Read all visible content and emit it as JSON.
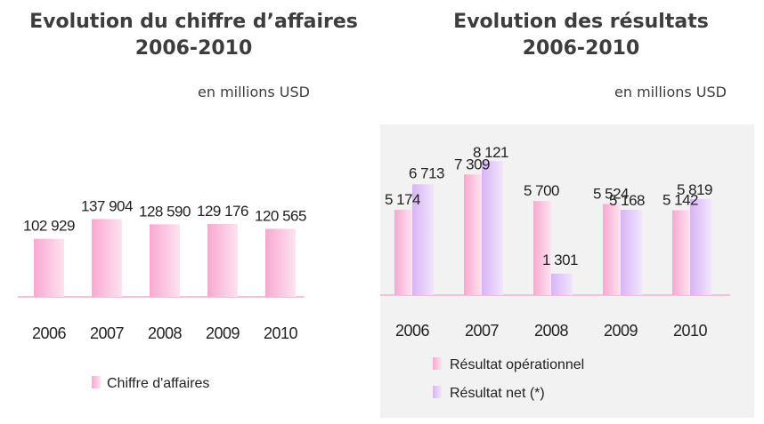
{
  "charts": [
    {
      "title_line1": "Evolution du chiffre d’affaires",
      "title_line2": "2006-2010",
      "unit": "en millions USD"
    },
    {
      "title_line1": "Evolution des résultats",
      "title_line2": "2006-2010",
      "unit": "en millions USD"
    }
  ],
  "colors": {
    "pink": "#f9a8d0",
    "purple": "#d8b4f6",
    "panel_bg": "#f2f2f2",
    "axis": "#f4c0dc"
  },
  "chart_data": [
    {
      "type": "bar",
      "title": "Evolution du chiffre d’affaires 2006-2010",
      "unit": "en millions USD",
      "categories": [
        "2006",
        "2007",
        "2008",
        "2009",
        "2010"
      ],
      "series": [
        {
          "name": "Chiffre d'affaires",
          "values": [
            102929,
            137904,
            128590,
            129176,
            120565
          ],
          "labels": [
            "102 929",
            "137 904",
            "128 590",
            "129 176",
            "120 565"
          ]
        }
      ],
      "ylim": [
        0,
        150000
      ],
      "grid": false,
      "legend": "bottom"
    },
    {
      "type": "bar",
      "title": "Evolution des résultats 2006-2010",
      "unit": "en millions USD",
      "categories": [
        "2006",
        "2007",
        "2008",
        "2009",
        "2010"
      ],
      "series": [
        {
          "name": "Résultat opérationnel",
          "values": [
            5174,
            7309,
            5700,
            5524,
            5142
          ],
          "labels": [
            "5 174",
            "7 309",
            "5 700",
            "5 524",
            "5 142"
          ]
        },
        {
          "name": "Résultat net (*)",
          "values": [
            6713,
            8121,
            1301,
            5168,
            5819
          ],
          "labels": [
            "6 713",
            "8 121",
            "1 301",
            "5 168",
            "5 819"
          ]
        }
      ],
      "ylim": [
        0,
        9000
      ],
      "grid": false,
      "legend": "bottom"
    }
  ]
}
